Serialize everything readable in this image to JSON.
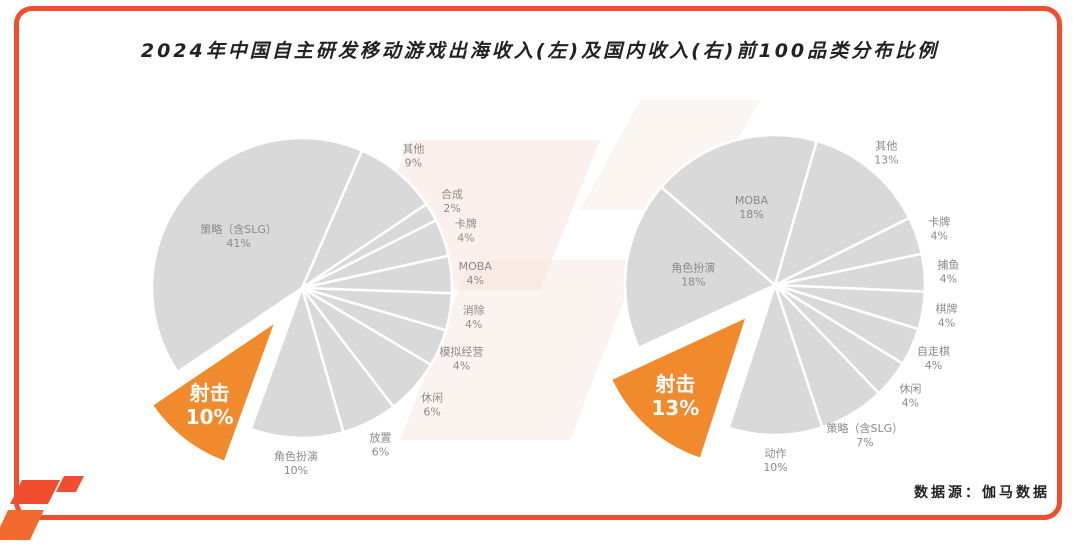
{
  "title": "2024年中国自主研发移动游戏出海收入(左)及国内收入(右)前100品类分布比例",
  "source": "数据源：伽马数据",
  "colors": {
    "slice": "#d9d9d9",
    "highlight": "#f08a2c",
    "border": "#f04e2e"
  },
  "chart_data": [
    {
      "type": "pie",
      "name": "出海收入(左)",
      "slices": [
        {
          "label": "射击",
          "value": "10%",
          "highlight": true
        },
        {
          "label": "策略（含SLG）",
          "value": "41%"
        },
        {
          "label": "其他",
          "value": "9%"
        },
        {
          "label": "合成",
          "value": "2%"
        },
        {
          "label": "卡牌",
          "value": "4%"
        },
        {
          "label": "MOBA",
          "value": "4%"
        },
        {
          "label": "消除",
          "value": "4%"
        },
        {
          "label": "模拟经营",
          "value": "4%"
        },
        {
          "label": "休闲",
          "value": "6%"
        },
        {
          "label": "放置",
          "value": "6%"
        },
        {
          "label": "角色扮演",
          "value": "10%"
        }
      ]
    },
    {
      "type": "pie",
      "name": "国内收入(右)",
      "slices": [
        {
          "label": "射击",
          "value": "13%",
          "highlight": true
        },
        {
          "label": "角色扮演",
          "value": "18%"
        },
        {
          "label": "MOBA",
          "value": "18%"
        },
        {
          "label": "其他",
          "value": "13%"
        },
        {
          "label": "卡牌",
          "value": "4%"
        },
        {
          "label": "捕鱼",
          "value": "4%"
        },
        {
          "label": "棋牌",
          "value": "4%"
        },
        {
          "label": "自走棋",
          "value": "4%"
        },
        {
          "label": "休闲",
          "value": "4%"
        },
        {
          "label": "策略（含SLG）",
          "value": "7%"
        },
        {
          "label": "动作",
          "value": "10%"
        }
      ]
    }
  ]
}
